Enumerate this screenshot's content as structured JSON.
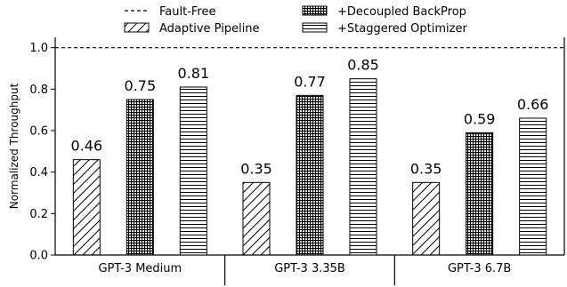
{
  "chart_data": {
    "type": "bar",
    "categories": [
      "GPT-3 Medium",
      "GPT-3 3.35B",
      "GPT-3 6.7B"
    ],
    "series": [
      {
        "name": "Adaptive Pipeline",
        "values": [
          0.46,
          0.35,
          0.35
        ],
        "pattern": "diagonal-hatch"
      },
      {
        "name": "+Decoupled BackProp",
        "values": [
          0.75,
          0.77,
          0.59
        ],
        "pattern": "dense-grid"
      },
      {
        "name": "+Staggered Optimizer",
        "values": [
          0.81,
          0.85,
          0.66
        ],
        "pattern": "horizontal-lines"
      }
    ],
    "value_labels": [
      [
        "0.46",
        "0.75",
        "0.81"
      ],
      [
        "0.35",
        "0.77",
        "0.85"
      ],
      [
        "0.35",
        "0.59",
        "0.66"
      ]
    ],
    "reference_line": {
      "name": "Fault-Free",
      "value": 1.0,
      "style": "dashed"
    },
    "ylabel": "Normalized Throughput",
    "xlabel": "",
    "ylim": [
      0,
      1.05
    ],
    "yticks": [
      "0.0",
      "0.2",
      "0.4",
      "0.6",
      "0.8",
      "1.0"
    ],
    "grid": false,
    "legend_position": "top"
  }
}
